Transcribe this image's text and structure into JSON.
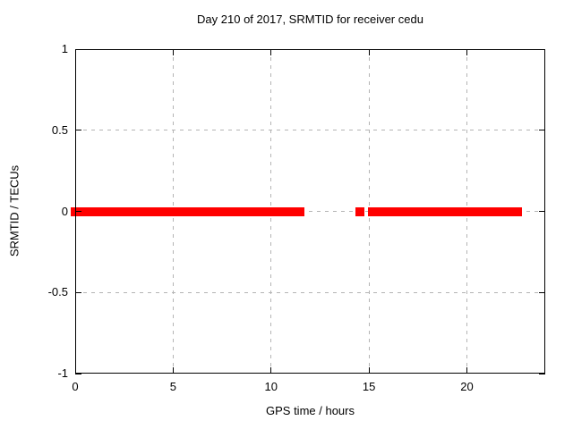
{
  "chart_data": {
    "type": "scatter",
    "title": "Day 210 of 2017, SRMTID for receiver cedu",
    "xlabel": "GPS time / hours",
    "ylabel": "SRMTID / TECUs",
    "xlim": [
      0,
      24
    ],
    "ylim": [
      -1,
      1
    ],
    "x_ticks": [
      0,
      5,
      10,
      15,
      20
    ],
    "x_tick_labels": [
      "0",
      "5",
      "10",
      "15",
      "20"
    ],
    "y_ticks": [
      1,
      0.5,
      0,
      -0.5,
      -1
    ],
    "y_tick_labels": [
      "1",
      "0.5",
      "0",
      "-0.5",
      "-1"
    ],
    "grid": "major-dashed",
    "legend_position": "none",
    "series": [
      {
        "name": "SRMTID",
        "marker": "filled-square",
        "color": "#ff0000",
        "y_value": 0,
        "x_segments_hours": [
          [
            0,
            11.7
          ],
          [
            14.3,
            14.75
          ],
          [
            14.95,
            22.8
          ]
        ]
      }
    ]
  },
  "colors": {
    "data": "#ff0000",
    "grid": "#b4b4b4",
    "axis": "#000000",
    "text": "#000000",
    "background": "#ffffff"
  }
}
